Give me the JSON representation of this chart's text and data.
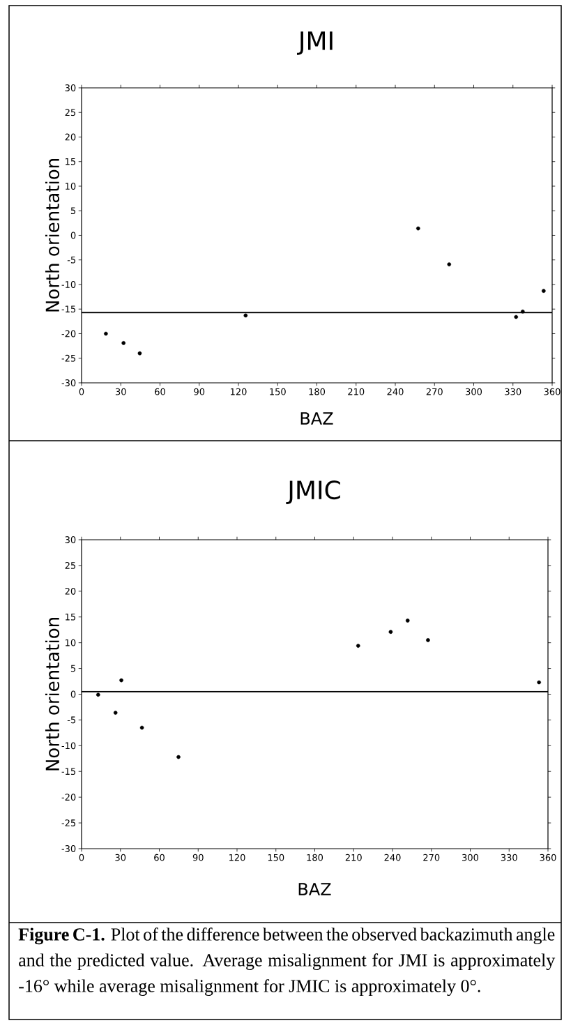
{
  "chart_data": [
    {
      "type": "scatter",
      "title": "JMI",
      "xlabel": "BAZ",
      "ylabel": "North orientation",
      "xlim": [
        0,
        360
      ],
      "ylim": [
        -30,
        30
      ],
      "xticks": [
        0,
        30,
        60,
        90,
        120,
        150,
        180,
        210,
        240,
        270,
        300,
        330,
        360
      ],
      "yticks": [
        -30,
        -25,
        -20,
        -15,
        -10,
        -5,
        0,
        5,
        10,
        15,
        20,
        25,
        30
      ],
      "grid": false,
      "series": [
        {
          "color": "#000000",
          "x": [
            18.6,
            32.1,
            44.5,
            125.5,
            257.5,
            281.2,
            332.4,
            337.5,
            353.5
          ],
          "values": [
            -20.0,
            -21.9,
            -24.0,
            -16.3,
            1.4,
            -5.9,
            -16.6,
            -15.5,
            -11.3
          ]
        }
      ],
      "ref_lines": [
        {
          "axis": "y",
          "value": -15.7,
          "color": "#000000"
        }
      ]
    },
    {
      "type": "scatter",
      "title": "JMIC",
      "xlabel": "BAZ",
      "ylabel": "North orientation",
      "xlim": [
        0,
        360
      ],
      "ylim": [
        -30,
        30
      ],
      "xticks": [
        0,
        30,
        60,
        90,
        120,
        150,
        180,
        210,
        240,
        270,
        300,
        330,
        360
      ],
      "yticks": [
        -30,
        -25,
        -20,
        -15,
        -10,
        -5,
        0,
        5,
        10,
        15,
        20,
        25,
        30
      ],
      "grid": false,
      "series": [
        {
          "color": "#000000",
          "x": [
            12.8,
            26.2,
            30.7,
            46.6,
            74.8,
            213.5,
            238.6,
            251.7,
            267.4,
            353.1
          ],
          "values": [
            -0.1,
            -3.6,
            2.7,
            -6.5,
            -12.2,
            9.4,
            12.1,
            14.3,
            10.5,
            2.3
          ]
        }
      ],
      "ref_lines": [
        {
          "axis": "y",
          "value": 0.5,
          "color": "#000000"
        }
      ],
      "annotations": [
        "**Figure C-1.** Plot of the difference between the observed backazimuth angle and the predicted value. Average misalignment for JMI is approximately -16° while average misalignment for JMIC is approximately 0°."
      ]
    }
  ]
}
